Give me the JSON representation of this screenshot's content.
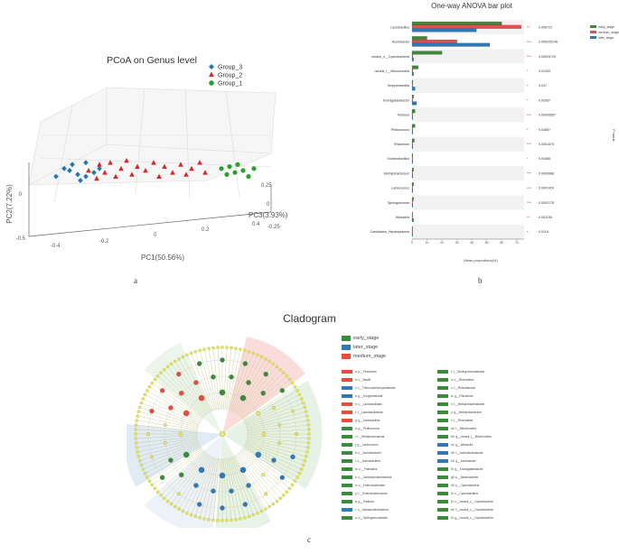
{
  "panel_a": {
    "label": "a",
    "title": "PCoA on Genus level",
    "legend": [
      {
        "name": "Group_3",
        "marker": "diamond",
        "color": "#1f77b4"
      },
      {
        "name": "Group_2",
        "marker": "triangle",
        "color": "#d62728"
      },
      {
        "name": "Group_1",
        "marker": "circle",
        "color": "#2ca02c"
      }
    ],
    "axes": {
      "pc1_label": "PC1(50.56%)",
      "pc2_label": "PC2(7.22%)",
      "pc3_label": "PC3(3.93%)",
      "pc1_ticks": [
        "-0.4",
        "-0.2",
        "0",
        "0.2",
        "0.4"
      ],
      "pc2_ticks": [
        "0",
        "-0.5"
      ],
      "pc3_ticks": [
        "0.25",
        "0",
        "-0.25"
      ]
    }
  },
  "panel_b": {
    "label": "b",
    "title": "One-way ANOVA bar plot",
    "legend": [
      {
        "name": "early_stage",
        "color": "#3a8a3a"
      },
      {
        "name": "medium_stage",
        "color": "#d9534f"
      },
      {
        "name": "later_stage",
        "color": "#2e7ab8"
      }
    ],
    "p_axis_label": "P-value",
    "x_axis_label": "Mean proportions(%)",
    "x_ticks": [
      "0",
      "10",
      "20",
      "30",
      "40",
      "50",
      "60",
      "70"
    ]
  },
  "panel_c": {
    "label": "c",
    "title": "Cladogram",
    "legend": [
      {
        "name": "early_stage",
        "color": "#3a8a3a"
      },
      {
        "name": "later_stage",
        "color": "#2e7ab8"
      },
      {
        "name": "medium_stage",
        "color": "#e74c3c"
      }
    ],
    "taxa_left": [
      {
        "name": "a: p__Firmicutes",
        "color": "#e74c3c"
      },
      {
        "name": "b: c__Bacilli",
        "color": "#e74c3c"
      },
      {
        "name": "c: f__Thermoactinomycetaceae",
        "color": "#2e7ab8"
      },
      {
        "name": "d: g__Kroppenstedtia",
        "color": "#2e7ab8"
      },
      {
        "name": "e: o__Lactobacillales",
        "color": "#e74c3c"
      },
      {
        "name": "f: f__Lactobacillaceae",
        "color": "#e74c3c"
      },
      {
        "name": "g: g__Lactobacillus",
        "color": "#e74c3c"
      },
      {
        "name": "h: g__Pediococcus",
        "color": "#3a8a3a"
      },
      {
        "name": "i: f__Streptococcaceae",
        "color": "#3a8a3a"
      },
      {
        "name": "j: g__Lactococcus",
        "color": "#3a8a3a"
      },
      {
        "name": "k: c__Actinobacteria",
        "color": "#3a8a3a"
      },
      {
        "name": "l: o__Actinobacteria",
        "color": "#3a8a3a"
      },
      {
        "name": "m: o__Frankiales",
        "color": "#3a8a3a"
      },
      {
        "name": "n: c__Gammaproteobacteria",
        "color": "#3a8a3a"
      },
      {
        "name": "o: o__Enterobacterales",
        "color": "#3a8a3a"
      },
      {
        "name": "p: f__Enterobacteriaceae",
        "color": "#3a8a3a"
      },
      {
        "name": "q: g__Pantoea",
        "color": "#3a8a3a"
      },
      {
        "name": "r: c__Alphaproteobacteria",
        "color": "#2e7ab8"
      },
      {
        "name": "s: o__Sphingomonadales",
        "color": "#3a8a3a"
      }
    ],
    "taxa_right": [
      {
        "name": "t: f__Sphingomonadaceae",
        "color": "#3a8a3a"
      },
      {
        "name": "u: o__Rhizobiales",
        "color": "#3a8a3a"
      },
      {
        "name": "v: f__Rhizobiaceae",
        "color": "#3a8a3a"
      },
      {
        "name": "w: g__Rhizobium",
        "color": "#3a8a3a"
      },
      {
        "name": "x: f__Methylobacteriaceae",
        "color": "#3a8a3a"
      },
      {
        "name": "y: g__Methylobacterium",
        "color": "#3a8a3a"
      },
      {
        "name": "z: f__Rhizobiales",
        "color": "#3a8a3a"
      },
      {
        "name": "a0: f__Mitochondria",
        "color": "#3a8a3a"
      },
      {
        "name": "b0: g__norank_f__Mitochondria",
        "color": "#3a8a3a"
      },
      {
        "name": "c0: g__Weissella",
        "color": "#2e7ab8"
      },
      {
        "name": "d0: f__Acetobacteraceae",
        "color": "#2e7ab8"
      },
      {
        "name": "e0: g__Acetobacter",
        "color": "#2e7ab8"
      },
      {
        "name": "f0: g__Komagataeibacter",
        "color": "#3a8a3a"
      },
      {
        "name": "g0: p__Bacteroidetes",
        "color": "#3a8a3a"
      },
      {
        "name": "h0: p__Cyanobacteria",
        "color": "#3a8a3a"
      },
      {
        "name": "i0: c__Cyanobacteria",
        "color": "#3a8a3a"
      },
      {
        "name": "j0: o__norank_c__Cyanobacteria",
        "color": "#3a8a3a"
      },
      {
        "name": "k0: f__norank_c__Cyanobacteria",
        "color": "#3a8a3a"
      },
      {
        "name": "l0: g__norank_c__Cyanobacteria",
        "color": "#3a8a3a"
      }
    ]
  },
  "chart_data": [
    {
      "type": "scatter",
      "title": "PCoA on Genus level",
      "xlabel": "PC1(50.56%)",
      "ylabel": "PC2(7.22%)",
      "zlabel": "PC3(3.93%)",
      "xlim": [
        -0.4,
        0.4
      ],
      "series": [
        {
          "name": "Group_3",
          "x": [
            -0.36,
            -0.33,
            -0.31,
            -0.3,
            -0.28,
            -0.27,
            -0.25,
            -0.25,
            -0.22,
            -0.2
          ],
          "y": [
            0.02,
            0.06,
            0.05,
            0.08,
            0.03,
            0.0,
            0.02,
            0.09,
            0.04,
            0.06
          ]
        },
        {
          "name": "Group_2",
          "x": [
            -0.24,
            -0.21,
            -0.2,
            -0.18,
            -0.16,
            -0.14,
            -0.12,
            -0.1,
            -0.08,
            -0.06,
            -0.03,
            0.0,
            0.02,
            0.04,
            0.07,
            0.1,
            0.12,
            0.14,
            0.17,
            0.19
          ],
          "y": [
            0.05,
            0.01,
            0.08,
            0.04,
            0.09,
            0.02,
            0.06,
            0.1,
            0.03,
            0.07,
            0.05,
            0.09,
            0.02,
            0.07,
            0.04,
            0.08,
            0.03,
            0.06,
            0.09,
            0.04
          ]
        },
        {
          "name": "Group_1",
          "x": [
            0.25,
            0.27,
            0.28,
            0.3,
            0.31,
            0.33,
            0.35,
            0.37
          ],
          "y": [
            0.06,
            0.03,
            0.07,
            0.04,
            0.08,
            0.05,
            0.02,
            0.06
          ]
        }
      ]
    },
    {
      "type": "bar",
      "title": "One-way ANOVA bar plot",
      "xlabel": "Mean proportions(%)",
      "xlim": [
        0,
        75
      ],
      "categories": [
        "Lactobacillus",
        "Acetobacter",
        "norank_c__Cyanobacteria",
        "norank_f__Mitochondria",
        "Kroppenstedtia",
        "Komagataeibacter",
        "Pantoea",
        "Pediococcus",
        "Rhizobium",
        "Oceanobacillus",
        "Methylobacterium",
        "Lactococcus",
        "Sphingomonas",
        "Weissella",
        "Candidatus_Hepatoplasma"
      ],
      "series": [
        {
          "name": "early_stage",
          "values": [
            60,
            10,
            20,
            4,
            0.5,
            1,
            2,
            2,
            1.5,
            0.5,
            1,
            1,
            1,
            0.3,
            0.3
          ]
        },
        {
          "name": "medium_stage",
          "values": [
            73,
            30,
            0.5,
            0.5,
            0.3,
            0.3,
            0.3,
            0.3,
            0.2,
            0.2,
            0.2,
            0.2,
            0.2,
            0.2,
            0.2
          ]
        },
        {
          "name": "later_stage",
          "values": [
            43,
            52,
            1,
            1,
            2,
            3,
            0.5,
            0.5,
            0.5,
            0.5,
            0.5,
            0.5,
            0.5,
            1,
            0.3
          ]
        }
      ],
      "p_values": [
        "0.006722",
        "0.000035146",
        "0.00003729",
        "0.01339",
        "0.047",
        "0.02087",
        "0.00008587",
        "0.04687",
        "0.0001875",
        "0.04468",
        "0.0009988",
        "0.0001429",
        "0.0002178",
        "0.001196",
        "0.0116"
      ],
      "significance": [
        "**",
        "***",
        "***",
        "*",
        "*",
        "*",
        "***",
        "*",
        "***",
        "*",
        "***",
        "***",
        "***",
        "**",
        "*"
      ]
    }
  ]
}
